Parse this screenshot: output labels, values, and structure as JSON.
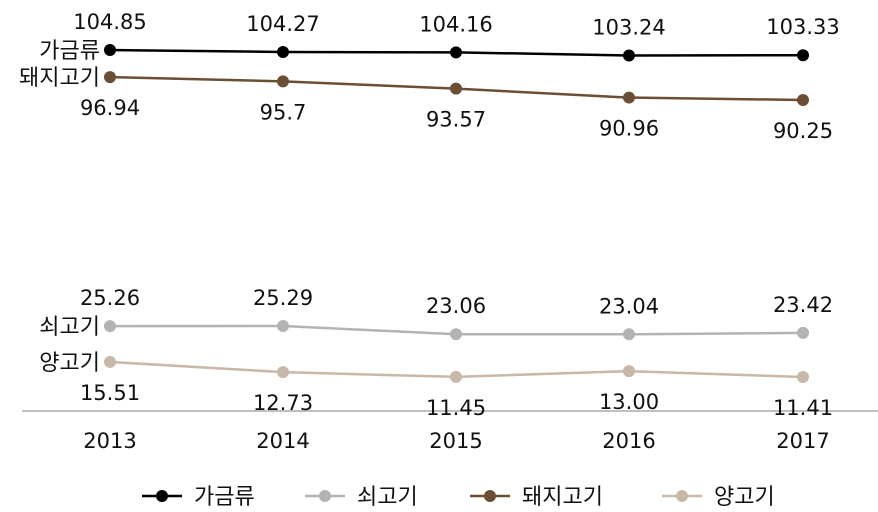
{
  "chart_data": {
    "type": "line",
    "title": "",
    "xlabel": "",
    "ylabel": "",
    "categories": [
      "2013",
      "2014",
      "2015",
      "2016",
      "2017"
    ],
    "series": [
      {
        "name": "가금류",
        "color": "#000000",
        "values": [
          104.85,
          104.27,
          104.16,
          103.24,
          103.33
        ],
        "value_labels": [
          "104.85",
          "104.27",
          "104.16",
          "103.24",
          "103.33"
        ],
        "label_position": "above"
      },
      {
        "name": "쇠고기",
        "color": "#b3b3b3",
        "values": [
          25.26,
          25.29,
          23.06,
          23.04,
          23.42
        ],
        "value_labels": [
          "25.26",
          "25.29",
          "23.06",
          "23.04",
          "23.42"
        ],
        "label_position": "above"
      },
      {
        "name": "돼지고기",
        "color": "#6b4f34",
        "values": [
          96.94,
          95.7,
          93.57,
          90.96,
          90.25
        ],
        "value_labels": [
          "96.94",
          "95.7",
          "93.57",
          "90.96",
          "90.25"
        ],
        "label_position": "below"
      },
      {
        "name": "양고기",
        "color": "#c8b8a8",
        "values": [
          15.51,
          12.73,
          11.45,
          13.0,
          11.41
        ],
        "value_labels": [
          "15.51",
          "12.73",
          "11.45",
          "13.00",
          "11.41"
        ],
        "label_position": "below"
      }
    ],
    "legend_position": "bottom",
    "grid": false
  }
}
